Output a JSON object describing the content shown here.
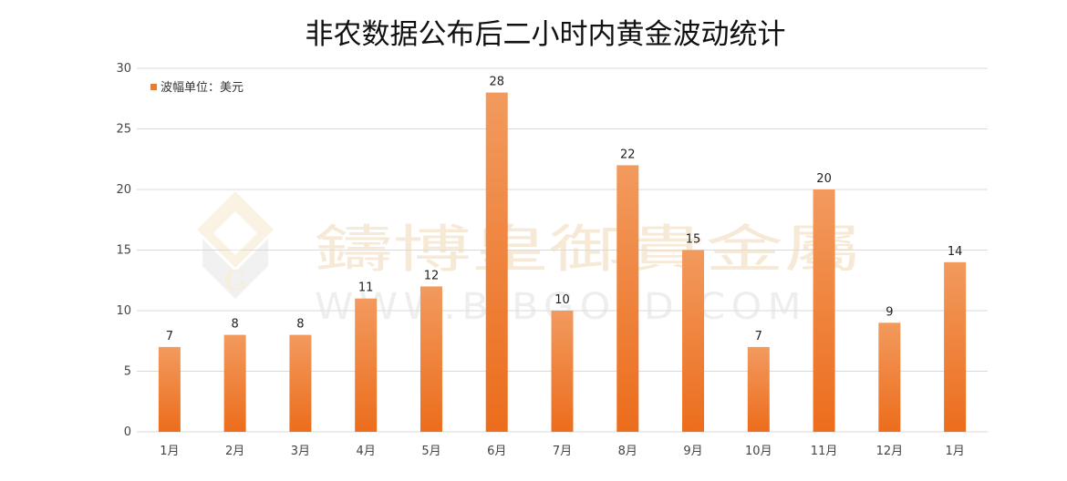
{
  "chart_data": {
    "type": "bar",
    "title": "非农数据公布后二小时内黄金波动统计",
    "categories": [
      "1月",
      "2月",
      "3月",
      "4月",
      "5月",
      "6月",
      "7月",
      "8月",
      "9月",
      "10月",
      "11月",
      "12月",
      "1月"
    ],
    "series": [
      {
        "name": "波幅单位：美元",
        "values": [
          7,
          8,
          8,
          11,
          12,
          28,
          10,
          22,
          15,
          7,
          20,
          9,
          14
        ]
      }
    ],
    "ylim": [
      0,
      30
    ],
    "yticks": [
      0,
      5,
      10,
      15,
      20,
      25,
      30
    ],
    "grid": true,
    "legend_position": "top-left",
    "colors": {
      "bar": "#f07a2c",
      "bar_light": "#f29a5e",
      "grid": "#d9d9d9"
    }
  },
  "watermark": {
    "brand_text": "鑄博皇御貴金屬",
    "url_text": "WWW.BIBGOLD.COM",
    "logo_letter": "G"
  }
}
